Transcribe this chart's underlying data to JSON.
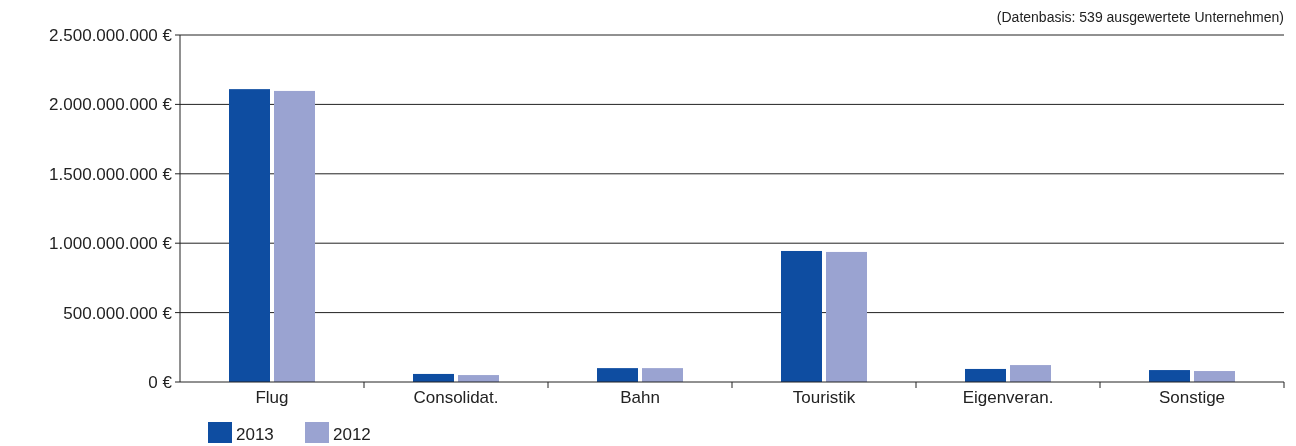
{
  "chart_data": {
    "type": "bar",
    "categories": [
      "Flug",
      "Consolidat.",
      "Bahn",
      "Touristik",
      "Eigenveran.",
      "Sonstige"
    ],
    "series": [
      {
        "name": "2013",
        "color": "#0e4da1",
        "values": [
          2110000000,
          58000000,
          100000000,
          944000000,
          94000000,
          86000000
        ]
      },
      {
        "name": "2012",
        "color": "#9aa3d1",
        "values": [
          2097000000,
          50000000,
          100000000,
          937000000,
          122000000,
          79000000
        ]
      }
    ],
    "ylim": [
      0,
      2500000000
    ],
    "yticks": [
      {
        "value": 0,
        "label": "0 €"
      },
      {
        "value": 500000000,
        "label": "500.000.000 €"
      },
      {
        "value": 1000000000,
        "label": "1.000.000.000 €"
      },
      {
        "value": 1500000000,
        "label": "1.500.000.000 €"
      },
      {
        "value": 2000000000,
        "label": "2.000.000.000 €"
      },
      {
        "value": 2500000000,
        "label": "2.500.000.000 €"
      }
    ],
    "grid": "y",
    "legend": "bottom left",
    "annotations": [
      "(Datenbasis: 539 ausgewertete Unternehmen)"
    ]
  }
}
